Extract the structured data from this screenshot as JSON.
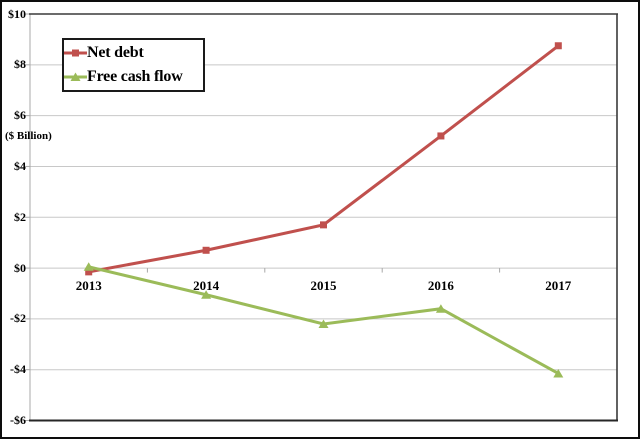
{
  "chart_data": {
    "type": "line",
    "title": "",
    "xlabel": "",
    "ylabel": "($ Billion)",
    "categories": [
      "2013",
      "2014",
      "2015",
      "2016",
      "2017"
    ],
    "series": [
      {
        "name": "Net debt",
        "color": "#C0504D",
        "marker": "square",
        "values": [
          -0.15,
          0.7,
          1.7,
          5.2,
          8.75
        ]
      },
      {
        "name": "Free cash flow",
        "color": "#9BBB59",
        "marker": "triangle",
        "values": [
          0.05,
          -1.05,
          -2.2,
          -1.6,
          -4.15
        ]
      }
    ],
    "ylim": [
      -6,
      10
    ],
    "ytick_step": 2,
    "ytick_labels": [
      "$10",
      "$8",
      "$6",
      "$4",
      "$2",
      "$0",
      "-$2",
      "-$4",
      "-$6"
    ],
    "grid": true,
    "legend_position": "top-left",
    "colors": {
      "gridline": "#C8C8C8",
      "axis": "#A8A8A8",
      "plot_border": "#3A3A3A",
      "outer_border": "#0D0D0D",
      "background": "#FFFFFF",
      "text": "#000000"
    }
  }
}
